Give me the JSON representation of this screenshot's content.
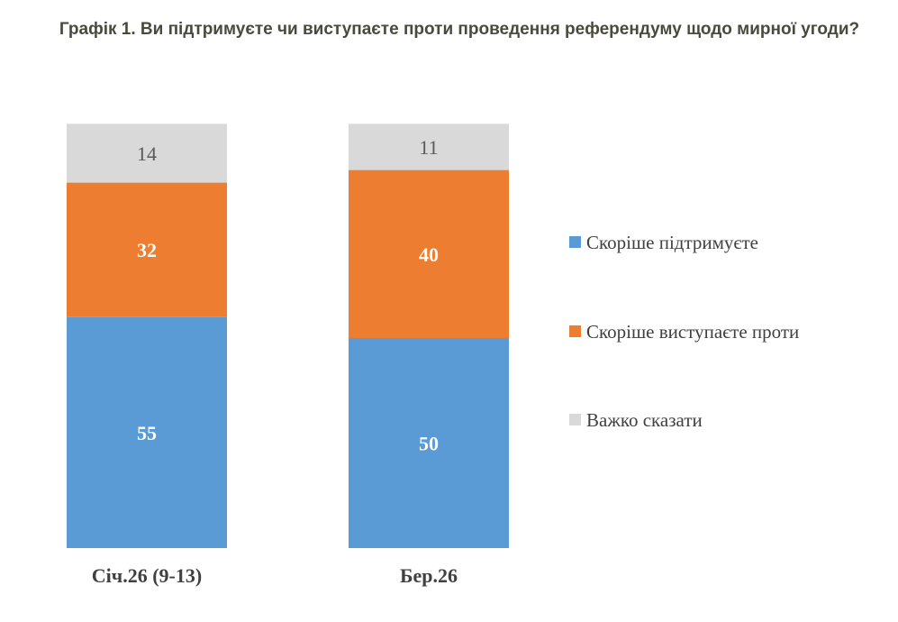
{
  "chart_data": {
    "type": "bar",
    "stacked": true,
    "title": "Графік 1. Ви підтримуєте чи виступаєте проти проведення референдуму щодо мирної угоди?",
    "categories": [
      "Січ.26 (9-13)",
      "Бер.26"
    ],
    "series": [
      {
        "name": "Скоріше підтримуєте",
        "values": [
          55,
          50
        ],
        "color": "#5b9bd5"
      },
      {
        "name": "Скоріше виступаєте проти",
        "values": [
          32,
          40
        ],
        "color": "#ed7d31"
      },
      {
        "name": "Важко сказати",
        "values": [
          14,
          11
        ],
        "color": "#d9d9d9"
      }
    ],
    "legend_position": "right",
    "grid": false,
    "data_labels": true
  }
}
